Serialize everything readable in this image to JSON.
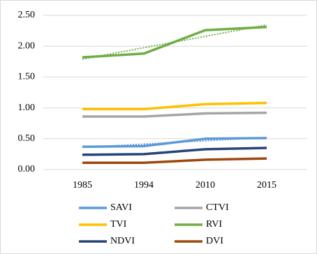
{
  "chart_data": {
    "type": "line",
    "categories": [
      "1985",
      "1994",
      "2010",
      "2015"
    ],
    "series": [
      {
        "name": "SAVI",
        "color": "#5b9bd5",
        "values": [
          0.37,
          0.38,
          0.5,
          0.51
        ],
        "trendline": true
      },
      {
        "name": "CTVI",
        "color": "#a5a5a5",
        "values": [
          0.86,
          0.86,
          0.91,
          0.92
        ]
      },
      {
        "name": "TVI",
        "color": "#ffc000",
        "values": [
          0.98,
          0.98,
          1.06,
          1.08
        ]
      },
      {
        "name": "RVI",
        "color": "#70ad47",
        "values": [
          1.82,
          1.88,
          2.26,
          2.31
        ],
        "trendline": true
      },
      {
        "name": "NDVI",
        "color": "#264478",
        "values": [
          0.24,
          0.25,
          0.33,
          0.35
        ]
      },
      {
        "name": "DVI",
        "color": "#9e480e",
        "values": [
          0.11,
          0.11,
          0.16,
          0.18
        ]
      }
    ],
    "ylim": [
      0,
      2.5
    ],
    "yticks": [
      {
        "value": 0,
        "label": "0.00"
      },
      {
        "value": 0.5,
        "label": "0.50"
      },
      {
        "value": 1,
        "label": "1.00"
      },
      {
        "value": 1.5,
        "label": "1.50"
      },
      {
        "value": 2,
        "label": "2.00"
      },
      {
        "value": 2.5,
        "label": "2.50"
      }
    ],
    "grid": true
  }
}
